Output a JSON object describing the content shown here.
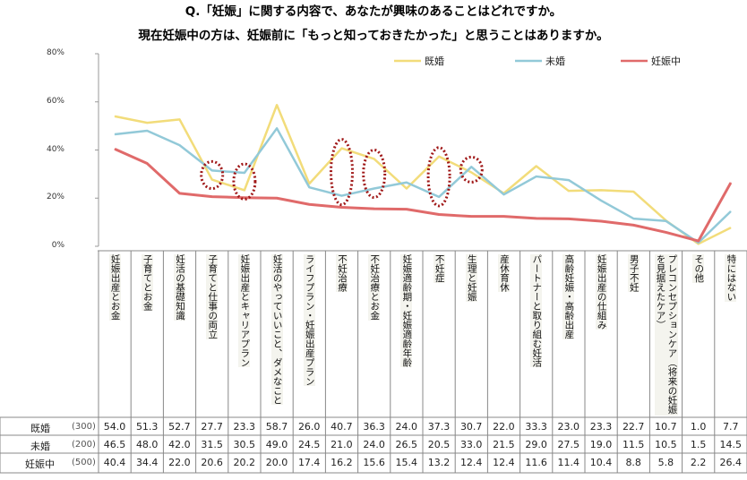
{
  "chart_data": {
    "type": "line",
    "title": [
      "Q.「妊娠」に関する内容で、あなたが興味のあることはどれですか。",
      "現在妊娠中の方は、妊娠前に「もっと知っておきたかった」と思うことはありますか。"
    ],
    "ylim": [
      0,
      80
    ],
    "yticks": [
      "0%",
      "20%",
      "40%",
      "60%",
      "80%"
    ],
    "categories": [
      "妊娠出産とお金",
      "子育てとお金",
      "妊活の基礎知識",
      "子育てと仕事の両立",
      "妊娠出産とキャリアプラン",
      "妊活のやっていいこと、ダメなこと",
      "ライフプラン・妊娠出産プラン",
      "不妊治療",
      "不妊治療とお金",
      "妊娠適齢期・妊娠適齢年齢",
      "不妊症",
      "生理と妊娠",
      "産休育休",
      "パートナーと取り組む妊活",
      "高齢妊娠・高齢出産",
      "妊娠出産の仕組み",
      "男子不妊",
      "プレコンセプションケア（将来の妊娠を見据えたケア）",
      "その他",
      "特にはない"
    ],
    "series": [
      {
        "name": "既婚",
        "n": "(300)",
        "color": "#f2dc7a",
        "values": [
          54.0,
          51.3,
          52.7,
          27.7,
          23.3,
          58.7,
          26.0,
          40.7,
          36.3,
          24.0,
          37.3,
          30.7,
          22.0,
          33.3,
          23.0,
          23.3,
          22.7,
          10.7,
          1.0,
          7.7
        ]
      },
      {
        "name": "未婚",
        "n": "(200)",
        "color": "#92c9d8",
        "values": [
          46.5,
          48.0,
          42.0,
          31.5,
          30.5,
          49.0,
          24.5,
          21.0,
          24.0,
          26.5,
          20.5,
          33.0,
          21.5,
          29.0,
          27.5,
          19.0,
          11.5,
          10.5,
          1.5,
          14.5
        ]
      },
      {
        "name": "妊娠中",
        "n": "(500)",
        "color": "#e06a6a",
        "values": [
          40.4,
          34.4,
          22.0,
          20.6,
          20.2,
          20.0,
          17.4,
          16.2,
          15.6,
          15.4,
          13.2,
          12.4,
          12.4,
          11.6,
          11.4,
          10.4,
          8.8,
          5.8,
          2.2,
          26.4
        ]
      }
    ],
    "highlighted_categories": [
      3,
      4,
      7,
      8,
      10,
      11
    ],
    "legend": "top-right",
    "grid": false
  }
}
